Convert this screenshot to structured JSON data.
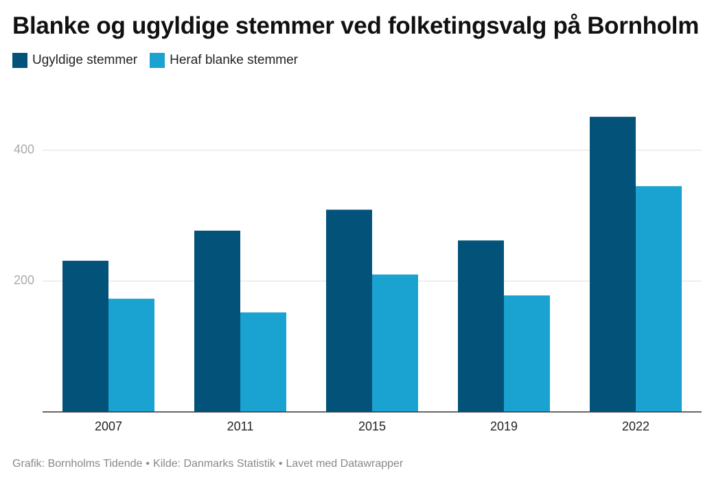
{
  "chart_data": {
    "type": "bar",
    "title": "Blanke og ugyldige stemmer ved folketingsvalg på Bornholm",
    "categories": [
      "2007",
      "2011",
      "2015",
      "2019",
      "2022"
    ],
    "series": [
      {
        "name": "Ugyldige stemmer",
        "values": [
          231,
          277,
          309,
          262,
          451
        ],
        "color": "#03527a"
      },
      {
        "name": "Heraf blanke stemmer",
        "values": [
          173,
          152,
          210,
          178,
          345
        ],
        "color": "#1aa2d0"
      }
    ],
    "ylim": [
      0,
      470
    ],
    "yticks": [
      200,
      400
    ],
    "xlabel": "",
    "ylabel": "",
    "grid": true,
    "legend": "top-left"
  },
  "footer": {
    "credit": "Grafik: Bornholms Tidende",
    "source": "Kilde: Danmarks Statistik",
    "tool": "Lavet med Datawrapper",
    "separator": "•"
  }
}
